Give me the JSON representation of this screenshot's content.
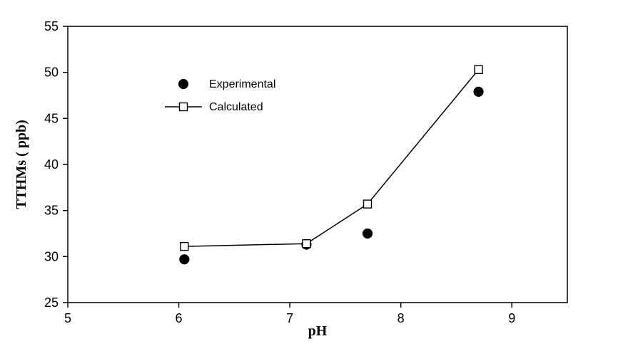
{
  "chart_data": {
    "type": "scatter",
    "title": "",
    "xlabel": "pH",
    "ylabel": "TTHMs ( ppb)",
    "xlim": [
      5,
      9.5
    ],
    "ylim": [
      25,
      55
    ],
    "xticks": [
      5,
      6,
      7,
      8,
      9
    ],
    "yticks": [
      25,
      30,
      35,
      40,
      45,
      50,
      55
    ],
    "grid": false,
    "legend_position": "upper-left-inside",
    "series": [
      {
        "name": "Experimental",
        "marker": "circle",
        "filled": true,
        "line": false,
        "points": [
          [
            6.05,
            29.7
          ],
          [
            7.15,
            31.3
          ],
          [
            7.7,
            32.5
          ],
          [
            8.7,
            47.9
          ]
        ]
      },
      {
        "name": "Calculated",
        "marker": "square",
        "filled": false,
        "line": true,
        "points": [
          [
            6.05,
            31.1
          ],
          [
            7.15,
            31.4
          ],
          [
            7.7,
            35.7
          ],
          [
            8.7,
            50.3
          ]
        ]
      }
    ],
    "colors": {
      "foreground": "#000000",
      "background": "#ffffff"
    }
  }
}
